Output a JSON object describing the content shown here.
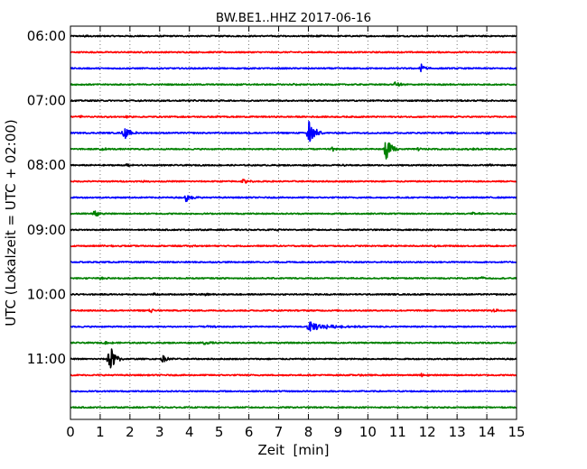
{
  "chart_data": {
    "type": "line",
    "title": "BW.BE1..HHZ 2017-06-16",
    "xlabel": "Zeit  [min]",
    "ylabel": "UTC (Lokalzeit = UTC + 02:00)",
    "xlim": [
      0,
      15
    ],
    "x_ticks": [
      0,
      1,
      2,
      3,
      4,
      5,
      6,
      7,
      8,
      9,
      10,
      11,
      12,
      13,
      14,
      15
    ],
    "x_tick_labels": [
      "0",
      "1",
      "2",
      "3",
      "4",
      "5",
      "6",
      "7",
      "8",
      "9",
      "10",
      "11",
      "12",
      "13",
      "14",
      "15"
    ],
    "grid": "vertical-dotted",
    "trace_interval_minutes": 15,
    "row_labels": [
      {
        "row": 0,
        "label": "06:00"
      },
      {
        "row": 4,
        "label": "07:00"
      },
      {
        "row": 8,
        "label": "08:00"
      },
      {
        "row": 12,
        "label": "09:00"
      },
      {
        "row": 16,
        "label": "10:00"
      },
      {
        "row": 20,
        "label": "11:00"
      }
    ],
    "color_cycle": [
      "#000000",
      "#ff0000",
      "#0000ff",
      "#008000"
    ],
    "rows": [
      {
        "color": "#000000",
        "events": [
          {
            "t": 0.5,
            "amp": 0.25
          },
          {
            "t": 7.0,
            "amp": 0.12
          },
          {
            "t": 8.2,
            "amp": 0.13
          }
        ]
      },
      {
        "color": "#ff0000",
        "events": []
      },
      {
        "color": "#0000ff",
        "events": [
          {
            "t": 11.8,
            "amp": 0.7
          }
        ]
      },
      {
        "color": "#008000",
        "events": [
          {
            "t": 5.5,
            "amp": 0.12
          },
          {
            "t": 7.5,
            "amp": 0.14
          },
          {
            "t": 10.9,
            "amp": 0.5
          },
          {
            "t": 12.5,
            "amp": 0.15
          }
        ]
      },
      {
        "color": "#000000",
        "events": [
          {
            "t": 2.2,
            "amp": 0.12
          },
          {
            "t": 4.0,
            "amp": 0.1
          }
        ]
      },
      {
        "color": "#ff0000",
        "events": [
          {
            "t": 0.3,
            "amp": 0.15
          },
          {
            "t": 1.3,
            "amp": 0.15
          },
          {
            "t": 1.9,
            "amp": 0.12
          },
          {
            "t": 4.9,
            "amp": 0.12
          }
        ]
      },
      {
        "color": "#0000ff",
        "events": [
          {
            "t": 1.8,
            "amp": 1.3
          },
          {
            "t": 8.0,
            "amp": 2.5
          },
          {
            "t": 12.8,
            "amp": 0.14
          },
          {
            "t": 14.0,
            "amp": 0.12
          }
        ]
      },
      {
        "color": "#008000",
        "events": [
          {
            "t": 1.0,
            "amp": 0.3
          },
          {
            "t": 8.8,
            "amp": 0.3
          },
          {
            "t": 10.6,
            "amp": 1.9
          },
          {
            "t": 11.7,
            "amp": 0.25
          },
          {
            "t": 13.4,
            "amp": 0.18
          }
        ]
      },
      {
        "color": "#000000",
        "events": [
          {
            "t": 1.9,
            "amp": 0.3
          },
          {
            "t": 9.2,
            "amp": 0.12
          },
          {
            "t": 14.1,
            "amp": 0.18
          }
        ]
      },
      {
        "color": "#ff0000",
        "events": [
          {
            "t": 5.8,
            "amp": 0.45
          },
          {
            "t": 2.4,
            "amp": 0.1
          }
        ]
      },
      {
        "color": "#0000ff",
        "events": [
          {
            "t": 3.9,
            "amp": 0.7
          }
        ]
      },
      {
        "color": "#008000",
        "events": [
          {
            "t": 0.8,
            "amp": 0.55
          },
          {
            "t": 13.5,
            "amp": 0.2
          },
          {
            "t": 14.6,
            "amp": 0.12
          }
        ]
      },
      {
        "color": "#000000",
        "events": [
          {
            "t": 7.0,
            "amp": 0.12
          }
        ]
      },
      {
        "color": "#ff0000",
        "events": [
          {
            "t": 4.0,
            "amp": 0.15
          },
          {
            "t": 12.2,
            "amp": 0.2
          },
          {
            "t": 1.1,
            "amp": 0.12
          }
        ]
      },
      {
        "color": "#0000ff",
        "events": []
      },
      {
        "color": "#008000",
        "events": [
          {
            "t": 1.0,
            "amp": 0.3
          },
          {
            "t": 13.8,
            "amp": 0.2
          }
        ]
      },
      {
        "color": "#000000",
        "events": [
          {
            "t": 4.5,
            "amp": 0.18
          },
          {
            "t": 2.8,
            "amp": 0.12
          }
        ]
      },
      {
        "color": "#ff0000",
        "events": [
          {
            "t": 2.7,
            "amp": 0.3
          },
          {
            "t": 14.2,
            "amp": 0.25
          }
        ]
      },
      {
        "color": "#0000ff",
        "events": [
          {
            "t": 8.0,
            "amp": 0.75,
            "dur": 1.8
          },
          {
            "t": 4.6,
            "amp": 0.2
          }
        ]
      },
      {
        "color": "#008000",
        "events": [
          {
            "t": 1.2,
            "amp": 0.2
          },
          {
            "t": 4.5,
            "amp": 0.3
          },
          {
            "t": 6.3,
            "amp": 0.15
          }
        ]
      },
      {
        "color": "#000000",
        "events": [
          {
            "t": 1.3,
            "amp": 2.6
          },
          {
            "t": 3.1,
            "amp": 0.55
          }
        ]
      },
      {
        "color": "#ff0000",
        "events": [
          {
            "t": 9.8,
            "amp": 0.15
          },
          {
            "t": 11.8,
            "amp": 0.2
          }
        ]
      },
      {
        "color": "#0000ff",
        "events": []
      },
      {
        "color": "#008000",
        "events": []
      }
    ]
  }
}
